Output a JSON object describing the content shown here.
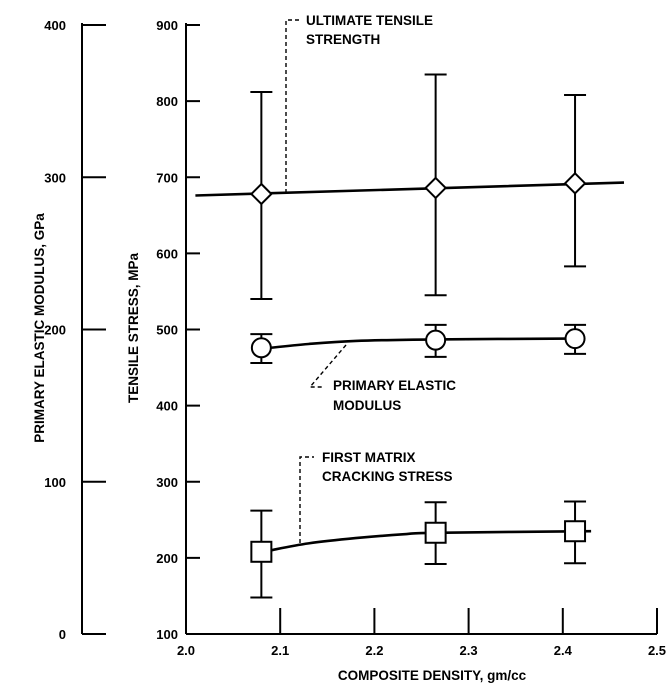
{
  "chart_data": {
    "type": "scatter",
    "xlabel": "COMPOSITE DENSITY, gm/cc",
    "ylabel": "TENSILE STRESS, MPa",
    "ylabel_secondary": "PRIMARY ELASTIC MODULUS, GPa",
    "xlim": [
      2.0,
      2.5
    ],
    "ylim": [
      100,
      900
    ],
    "ylim_secondary": [
      0,
      400
    ],
    "x_ticks": [
      "2.0",
      "2.1",
      "2.2",
      "2.3",
      "2.4",
      "2.5"
    ],
    "y_ticks": [
      "100",
      "200",
      "300",
      "400",
      "500",
      "600",
      "700",
      "800",
      "900"
    ],
    "y_ticks_secondary": [
      "0",
      "100",
      "200",
      "300",
      "400"
    ],
    "grid": false,
    "series": [
      {
        "name": "ULTIMATE TENSILE STRENGTH",
        "marker": "diamond",
        "axis": "primary",
        "x": [
          2.08,
          2.265,
          2.413
        ],
        "y": [
          678,
          686,
          692
        ],
        "y_low": [
          540,
          545,
          583
        ],
        "y_high": [
          812,
          835,
          808
        ],
        "curve_x": [
          2.01,
          2.465
        ],
        "curve_y": [
          676,
          693
        ]
      },
      {
        "name": "PRIMARY ELASTIC MODULUS",
        "marker": "circle",
        "axis": "secondary",
        "x": [
          2.08,
          2.265,
          2.413
        ],
        "y": [
          188,
          193,
          194
        ],
        "y_low": [
          178,
          182,
          184
        ],
        "y_high": [
          197,
          203,
          203
        ],
        "curve_x": [
          2.09,
          2.13,
          2.18,
          2.265,
          2.41
        ],
        "curve_y": [
          188,
          190.5,
          192.5,
          193.5,
          194
        ]
      },
      {
        "name": "FIRST MATRIX CRACKING STRESS",
        "marker": "square",
        "axis": "primary",
        "x": [
          2.08,
          2.265,
          2.413
        ],
        "y": [
          208,
          233,
          235
        ],
        "y_low": [
          148,
          192,
          193
        ],
        "y_high": [
          262,
          273,
          274
        ],
        "curve_x": [
          2.09,
          2.13,
          2.18,
          2.23,
          2.265,
          2.43
        ],
        "curve_y": [
          210,
          219,
          226,
          231,
          233,
          235
        ]
      }
    ],
    "annotations": [
      {
        "id": "uts",
        "lines": [
          "ULTIMATE TENSILE",
          "STRENGTH"
        ]
      },
      {
        "id": "pem",
        "lines": [
          "PRIMARY ELASTIC",
          "MODULUS"
        ]
      },
      {
        "id": "fmcs",
        "lines": [
          "FIRST MATRIX",
          "CRACKING STRESS"
        ]
      }
    ]
  }
}
